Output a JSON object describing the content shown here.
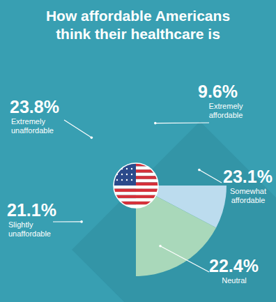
{
  "chart_data": {
    "type": "pie",
    "title": "How affordable Americans think their healthcare is",
    "categories": [
      "Extremely affordable",
      "Somewhat affordable",
      "Neutral",
      "Slightly unaffordable",
      "Extremely unaffordable"
    ],
    "values": [
      9.6,
      23.1,
      22.4,
      21.1,
      23.8
    ],
    "value_labels": [
      "9.6%",
      "23.1%",
      "22.4%",
      "21.1%",
      "23.8%"
    ],
    "colors": [
      "#f5cd5f",
      "#bcdcee",
      "#a9d8ba",
      "#f6d6cd",
      "#72b8b6"
    ],
    "data_labels": true
  }
}
